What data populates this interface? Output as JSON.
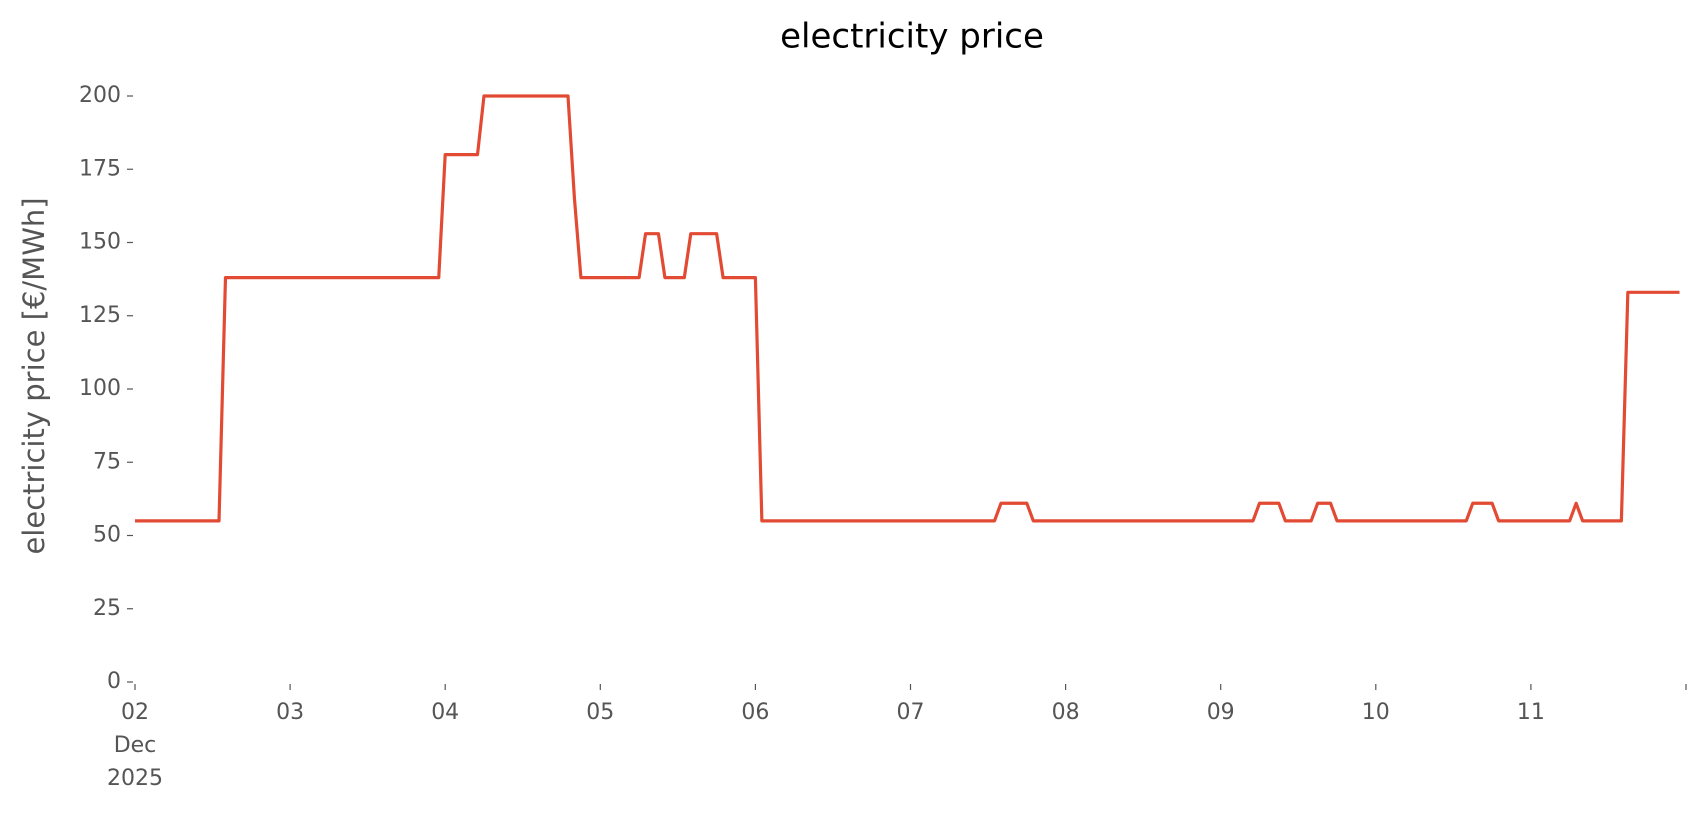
{
  "chart_data": {
    "type": "line",
    "title": "electricity price",
    "y_label": "electricity price [€/MWh]",
    "x": [
      "2025-12-02T00:00",
      "2025-12-02T13:00",
      "2025-12-02T14:00",
      "2025-12-03T23:00",
      "2025-12-04T00:00",
      "2025-12-04T05:00",
      "2025-12-04T06:00",
      "2025-12-04T19:00",
      "2025-12-04T20:00",
      "2025-12-04T21:00",
      "2025-12-05T06:00",
      "2025-12-05T07:00",
      "2025-12-05T09:00",
      "2025-12-05T10:00",
      "2025-12-05T13:00",
      "2025-12-05T14:00",
      "2025-12-05T18:00",
      "2025-12-05T19:00",
      "2025-12-06T00:00",
      "2025-12-06T01:00",
      "2025-12-07T13:00",
      "2025-12-07T14:00",
      "2025-12-07T18:00",
      "2025-12-07T19:00",
      "2025-12-09T05:00",
      "2025-12-09T06:00",
      "2025-12-09T09:00",
      "2025-12-09T10:00",
      "2025-12-09T14:00",
      "2025-12-09T15:00",
      "2025-12-09T17:00",
      "2025-12-09T18:00",
      "2025-12-10T14:00",
      "2025-12-10T15:00",
      "2025-12-10T18:00",
      "2025-12-10T19:00",
      "2025-12-11T06:00",
      "2025-12-11T07:00",
      "2025-12-11T08:00",
      "2025-12-11T14:00",
      "2025-12-11T15:00",
      "2025-12-11T23:00"
    ],
    "series": [
      {
        "name": "electricity price",
        "color": "#E24A33",
        "values": [
          55,
          55,
          138,
          138,
          180,
          180,
          200,
          200,
          165,
          138,
          138,
          153,
          153,
          138,
          138,
          153,
          153,
          138,
          138,
          55,
          55,
          61,
          61,
          55,
          55,
          61,
          61,
          55,
          55,
          61,
          61,
          55,
          55,
          61,
          61,
          55,
          55,
          61,
          55,
          55,
          133,
          133
        ]
      }
    ],
    "xlim": [
      "2025-12-02T00:00",
      "2025-12-12T00:00"
    ],
    "xticks": [
      {
        "value": "2025-12-02T00:00",
        "label": "02\nDec\n2025"
      },
      {
        "value": "2025-12-03T00:00",
        "label": "03"
      },
      {
        "value": "2025-12-04T00:00",
        "label": "04"
      },
      {
        "value": "2025-12-05T00:00",
        "label": "05"
      },
      {
        "value": "2025-12-06T00:00",
        "label": "06"
      },
      {
        "value": "2025-12-07T00:00",
        "label": "07"
      },
      {
        "value": "2025-12-08T00:00",
        "label": "08"
      },
      {
        "value": "2025-12-09T00:00",
        "label": "09"
      },
      {
        "value": "2025-12-10T00:00",
        "label": "10"
      },
      {
        "value": "2025-12-11T00:00",
        "label": "11"
      },
      {
        "value": "2025-12-12T00:00",
        "label": null
      }
    ],
    "ylim": [
      0,
      200
    ],
    "yticks": [
      0,
      25,
      50,
      75,
      100,
      125,
      150,
      175,
      200
    ],
    "grid": false
  }
}
